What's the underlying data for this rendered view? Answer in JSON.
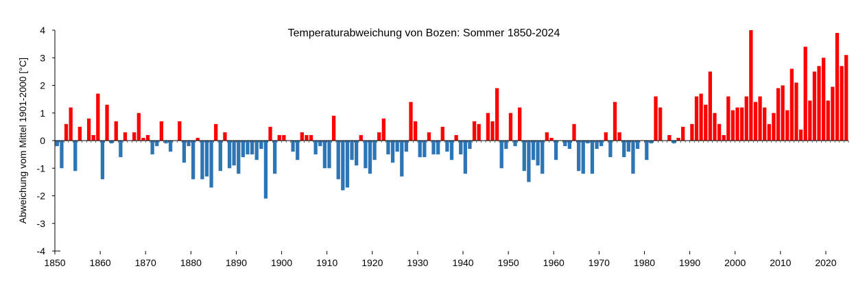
{
  "chart_data": {
    "type": "bar",
    "title": "Temperaturabweichung von Bozen: Sommer 1850-2024",
    "xlabel": "",
    "ylabel": "Abweichung vom Mittel 1901-2000 [°C]",
    "x_start": 1850,
    "x_end": 2024,
    "xticks": [
      1850,
      1860,
      1870,
      1880,
      1890,
      1900,
      1910,
      1920,
      1930,
      1940,
      1950,
      1960,
      1970,
      1980,
      1990,
      2000,
      2010,
      2020
    ],
    "yticks": [
      -4,
      -3,
      -2,
      -1,
      0,
      1,
      2,
      3,
      4
    ],
    "ylim": [
      -4,
      4
    ],
    "grid": false,
    "colors": {
      "positive": "#ff0000",
      "negative": "#2e75b6",
      "axis": "#000000"
    },
    "values": [
      -0.2,
      -1.0,
      0.6,
      1.2,
      -1.1,
      0.5,
      0.0,
      0.8,
      0.2,
      1.7,
      -1.4,
      1.3,
      -0.1,
      0.7,
      -0.6,
      0.3,
      0.0,
      0.3,
      1.0,
      0.1,
      0.2,
      -0.5,
      -0.2,
      0.7,
      -0.1,
      -0.4,
      0.0,
      0.7,
      -0.8,
      -0.2,
      -1.4,
      0.1,
      -1.4,
      -1.3,
      -1.7,
      0.6,
      -1.1,
      0.3,
      -1.0,
      -0.9,
      -1.2,
      -0.6,
      -0.5,
      -0.5,
      -0.7,
      -0.3,
      -2.1,
      0.5,
      -1.2,
      0.2,
      0.2,
      0.0,
      -0.4,
      -0.7,
      0.3,
      0.2,
      0.2,
      -0.5,
      -0.2,
      -1.0,
      -1.0,
      0.9,
      -1.4,
      -1.8,
      -1.7,
      -0.7,
      -0.9,
      0.2,
      -1.0,
      -1.2,
      -0.7,
      0.3,
      0.8,
      -0.5,
      -0.8,
      -0.4,
      -1.3,
      -0.4,
      1.4,
      0.7,
      -0.6,
      -0.6,
      0.3,
      -0.5,
      -0.5,
      0.5,
      -0.4,
      -0.7,
      0.2,
      -0.5,
      -1.2,
      -0.3,
      0.7,
      0.6,
      0.0,
      1.0,
      0.7,
      1.9,
      -1.0,
      -0.3,
      1.0,
      -0.2,
      1.2,
      -1.1,
      -1.5,
      -0.7,
      -0.9,
      -1.2,
      0.3,
      0.1,
      -0.7,
      0.0,
      -0.2,
      -0.3,
      0.6,
      -1.1,
      -1.2,
      -0.1,
      -1.2,
      -0.3,
      -0.2,
      0.3,
      -0.6,
      1.4,
      0.3,
      -0.6,
      -0.4,
      -1.2,
      -0.3,
      0.0,
      -0.7,
      -0.1,
      1.6,
      1.2,
      0.0,
      0.2,
      -0.1,
      0.1,
      0.5,
      0.0,
      0.6,
      1.6,
      1.7,
      1.3,
      2.5,
      1.0,
      0.6,
      0.2,
      1.6,
      1.1,
      1.2,
      1.2,
      1.6,
      4.0,
      1.4,
      1.6,
      1.2,
      0.6,
      1.0,
      1.9,
      2.0,
      1.1,
      2.6,
      2.1,
      0.4,
      3.4,
      1.45,
      2.5,
      2.7,
      3.0,
      1.45,
      1.95,
      3.9,
      2.7,
      3.1
    ]
  }
}
